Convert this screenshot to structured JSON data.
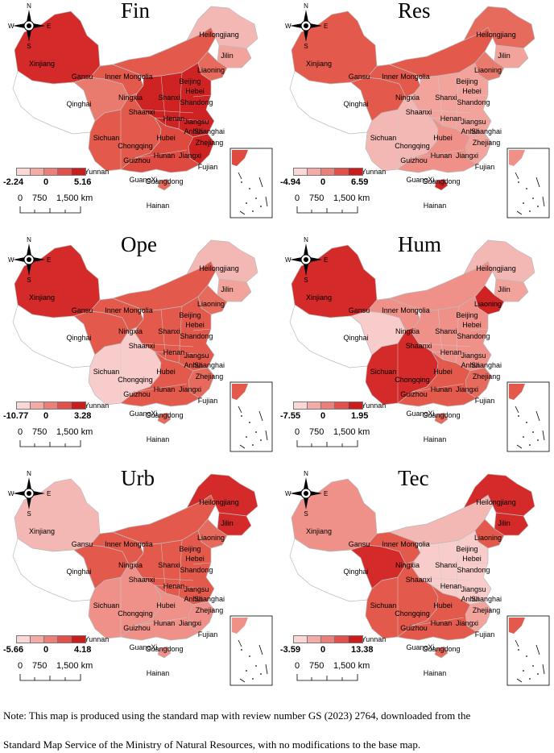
{
  "panels": [
    {
      "title": "Fin",
      "legend_min": "-2.24",
      "legend_mid": "0",
      "legend_max": "5.16",
      "colors": {
        "Xinjiang": "#d42a2a",
        "Inner Mongolia": "#e35a4c",
        "Heilongjiang": "#f4b8b4",
        "Jilin": "#f2a49c",
        "Liaoning": "#e76b5d",
        "North": "#cf2323",
        "South": "#de4a3f",
        "Southwest": "#e35a4c",
        "Qinghai": "#e97b6e",
        "Gansu": "#e35a4c",
        "Tibet": "#ffffff",
        "Fujian": "#cf2323",
        "Hainan": "#e76b5d"
      }
    },
    {
      "title": "Res",
      "legend_min": "-4.94",
      "legend_mid": "0",
      "legend_max": "6.59",
      "colors": {
        "Xinjiang": "#e35a4c",
        "Inner Mongolia": "#e35a4c",
        "Heilongjiang": "#e76b5d",
        "Jilin": "#f2a49c",
        "Liaoning": "#e97b6e",
        "North": "#f2a49c",
        "South": "#ef9189",
        "Southwest": "#f4b8b4",
        "Qinghai": "#e35a4c",
        "Gansu": "#e35a4c",
        "Tibet": "#ffffff",
        "Fujian": "#f2a49c",
        "Hainan": "#cf2323"
      }
    },
    {
      "title": "Ope",
      "legend_min": "-10.77",
      "legend_mid": "0",
      "legend_max": "3.28",
      "colors": {
        "Xinjiang": "#d42a2a",
        "Inner Mongolia": "#e35a4c",
        "Heilongjiang": "#f4b8b4",
        "Jilin": "#f2a49c",
        "Liaoning": "#e76b5d",
        "North": "#e35a4c",
        "South": "#e35a4c",
        "Southwest": "#f8cccb",
        "Qinghai": "#e35a4c",
        "Gansu": "#e35a4c",
        "Tibet": "#ffffff",
        "Fujian": "#e76b5d",
        "Hainan": "#e76b5d"
      }
    },
    {
      "title": "Hum",
      "legend_min": "-7.55",
      "legend_mid": "0",
      "legend_max": "1.95",
      "colors": {
        "Xinjiang": "#d42a2a",
        "Inner Mongolia": "#ef9189",
        "Heilongjiang": "#f4b8b4",
        "Jilin": "#f2a49c",
        "Liaoning": "#cf2323",
        "North": "#ef9189",
        "South": "#e35a4c",
        "Southwest": "#d42a2a",
        "Qinghai": "#f8cccb",
        "Gansu": "#ef9189",
        "Tibet": "#ffffff",
        "Fujian": "#e76b5d",
        "Hainan": "#e76b5d"
      }
    },
    {
      "title": "Urb",
      "legend_min": "-5.66",
      "legend_mid": "0",
      "legend_max": "4.18",
      "colors": {
        "Xinjiang": "#f4b8b4",
        "Inner Mongolia": "#e35a4c",
        "Heilongjiang": "#d42a2a",
        "Jilin": "#d42a2a",
        "Liaoning": "#e76b5d",
        "North": "#e35a4c",
        "South": "#ef9189",
        "Southwest": "#ef9189",
        "Qinghai": "#e35a4c",
        "Gansu": "#e35a4c",
        "Tibet": "#ffffff",
        "Fujian": "#ef9189",
        "Hainan": "#ef9189"
      }
    },
    {
      "title": "Tec",
      "legend_min": "-3.59",
      "legend_mid": "0",
      "legend_max": "13.38",
      "colors": {
        "Xinjiang": "#ef9189",
        "Inner Mongolia": "#f4b8b4",
        "Heilongjiang": "#d42a2a",
        "Jilin": "#d42a2a",
        "Liaoning": "#e35a4c",
        "North": "#f8cccb",
        "South": "#e35a4c",
        "Southwest": "#e35a4c",
        "Qinghai": "#d42a2a",
        "Gansu": "#e35a4c",
        "Tibet": "#ffffff",
        "Fujian": "#f2a49c",
        "Hainan": "#e76b5d"
      }
    }
  ],
  "legend_colors": [
    "#fbd7d5",
    "#f4aaa5",
    "#ec7f77",
    "#e35049",
    "#cc1b1b"
  ],
  "province_labels": [
    "Xinjiang",
    "Gansu",
    "Inner Mongolia",
    "Heilongjiang",
    "Jilin",
    "Liaoning",
    "Beijing",
    "Hebei",
    "Ningxia",
    "Shanxi",
    "Shandong",
    "Qinghai",
    "Shaanxi",
    "Henan",
    "Jiangsu",
    "Anhui",
    "Shanghai",
    "Hubei",
    "Sichuan",
    "Chongqing",
    "Zhejiang",
    "Hunan",
    "Jiangxi",
    "Guizhou",
    "Fujian",
    "Yunnan",
    "GuangXi",
    "Guangdong",
    "Hainan"
  ],
  "compass": {
    "n": "N",
    "s": "S",
    "w": "W",
    "e": "E"
  },
  "scale": {
    "t0": "0",
    "t1": "750",
    "t2": "1,500 km"
  },
  "note": {
    "line1": "Note: This map is produced using the standard map with review number GS (2023) 2764, downloaded from the",
    "line2": "Standard Map Service of the Ministry of Natural Resources, with no modifications to the base map."
  }
}
